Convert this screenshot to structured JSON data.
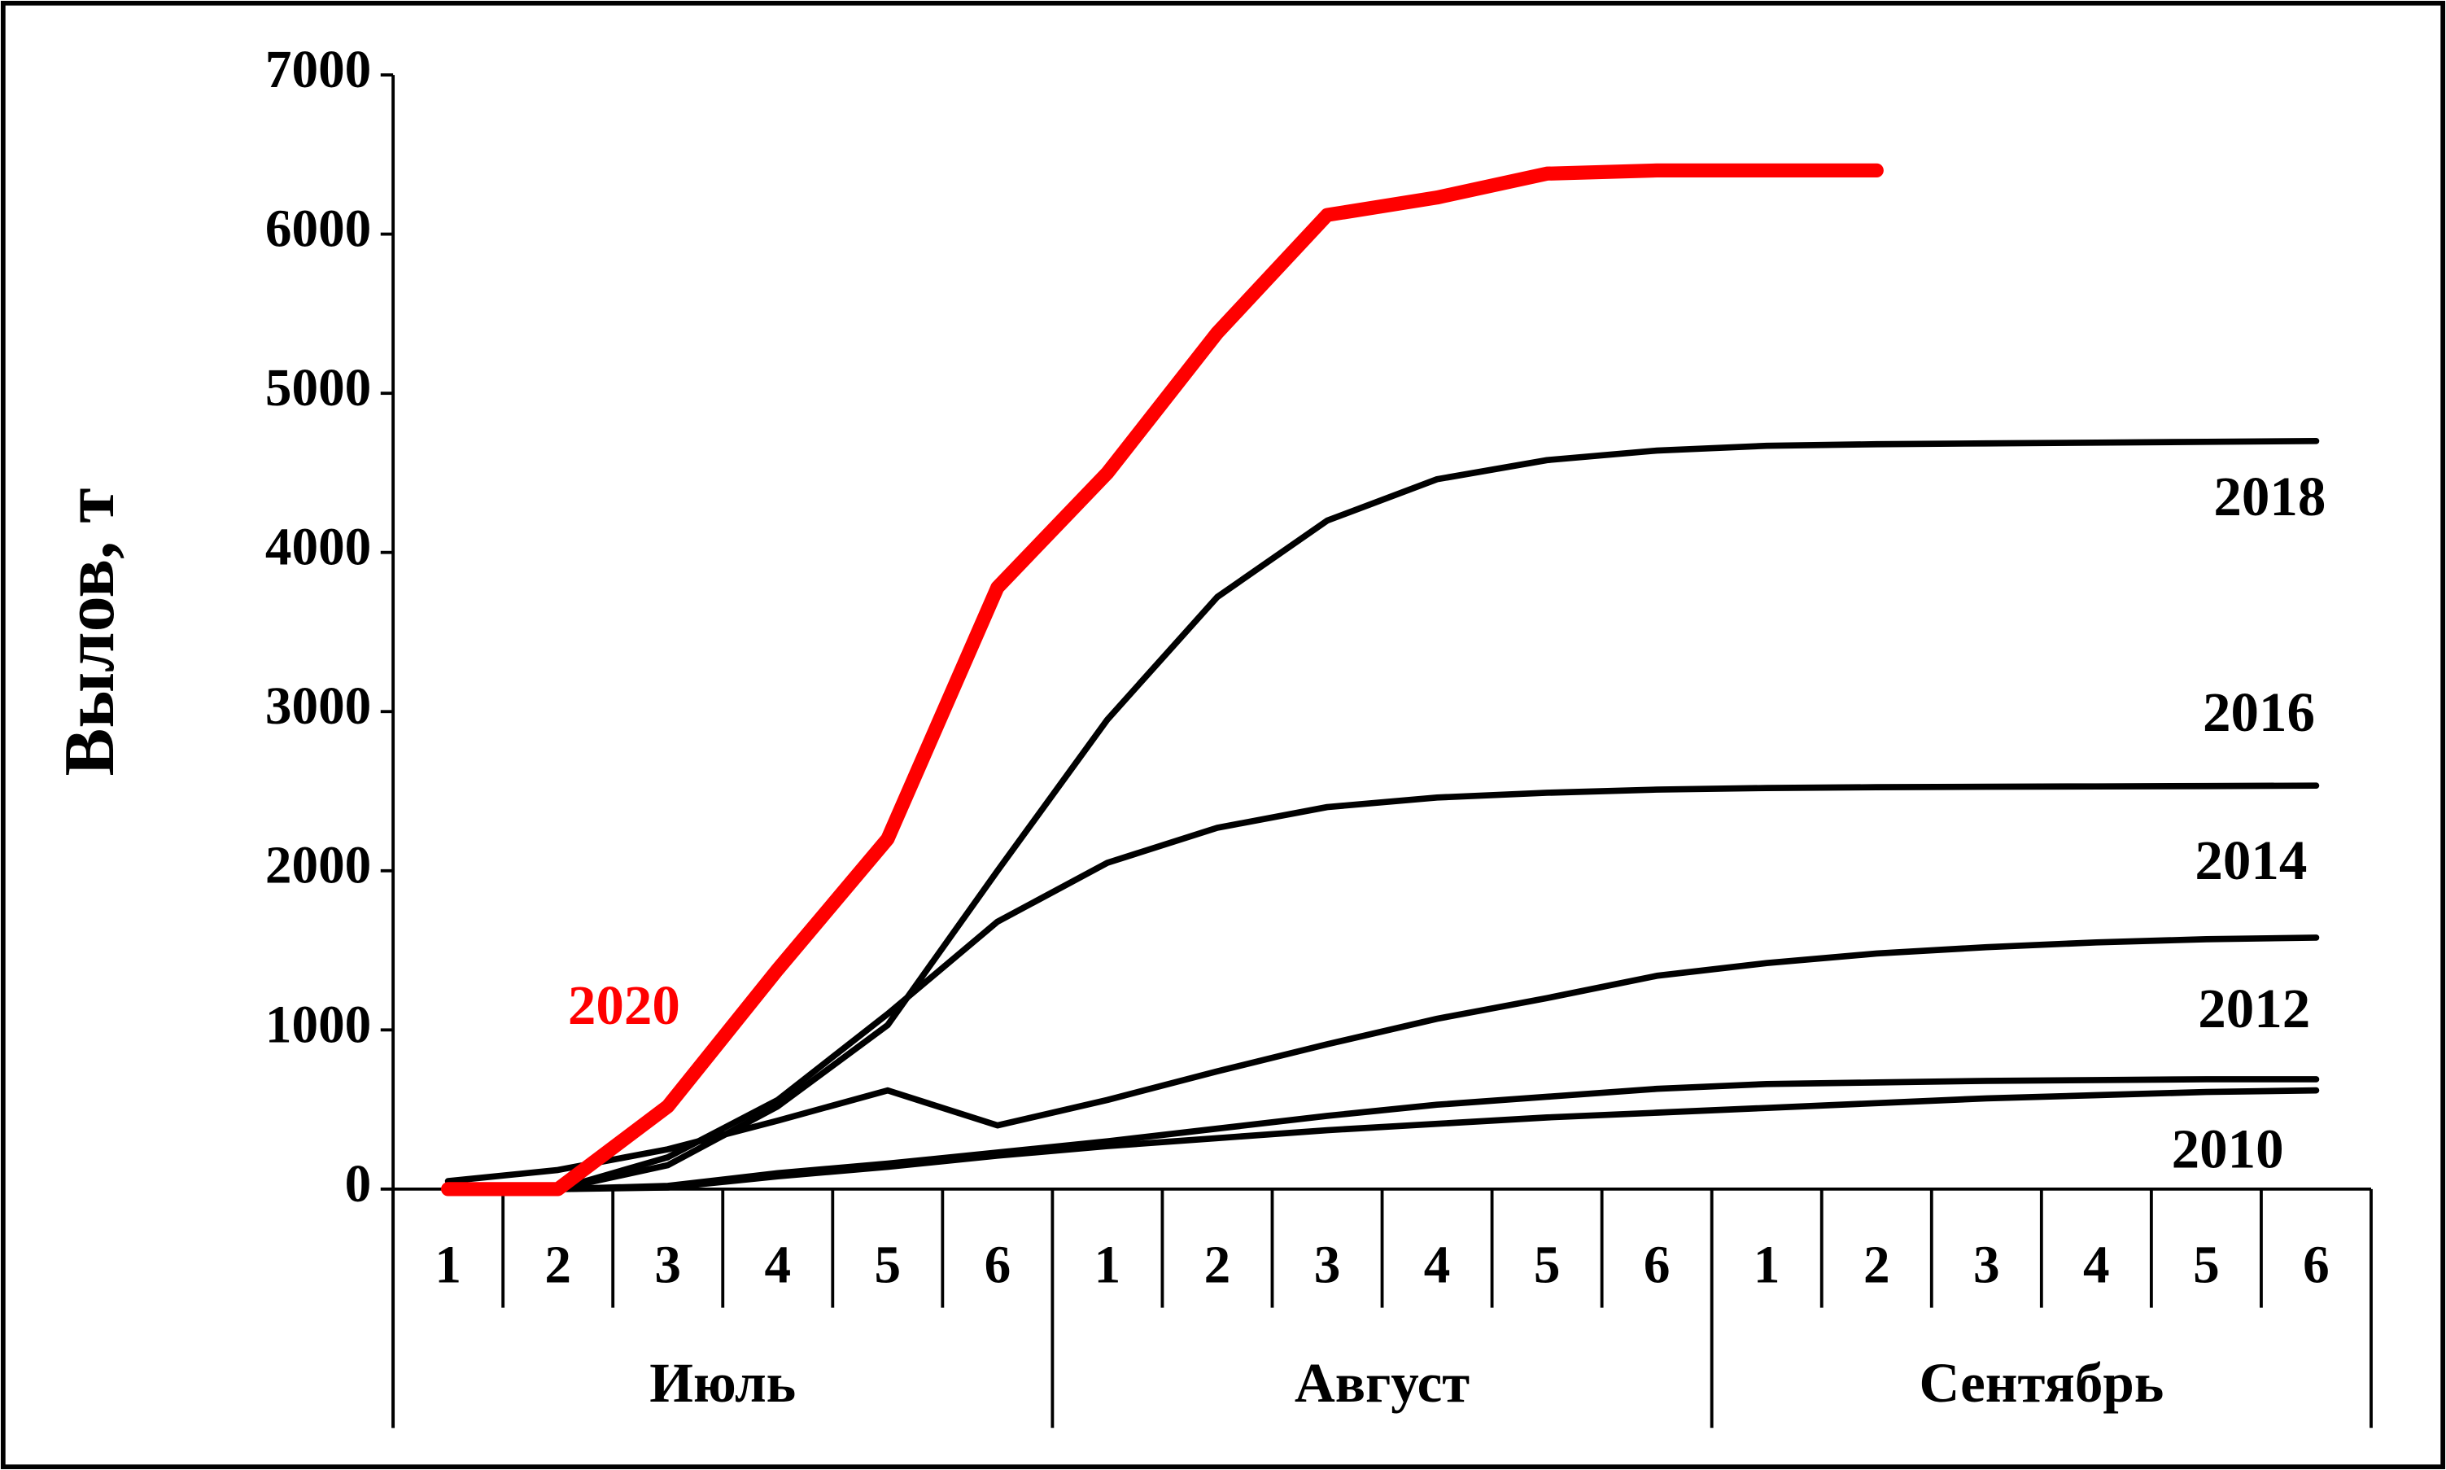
{
  "chart_data": {
    "type": "line",
    "y_label": "Вылов, т",
    "categories": [
      "1",
      "2",
      "3",
      "4",
      "5",
      "6",
      "1",
      "2",
      "3",
      "4",
      "5",
      "6",
      "1",
      "2",
      "3",
      "4",
      "5",
      "6"
    ],
    "month_labels": [
      "Июль",
      "Август",
      "Сентябрь"
    ],
    "ylim": [
      0,
      7000
    ],
    "yticks": [
      0,
      1000,
      2000,
      3000,
      4000,
      5000,
      6000,
      7000
    ],
    "series": [
      {
        "name": "2020",
        "color": "#ff0000",
        "values": [
          0,
          0,
          520,
          1380,
          2200,
          3780,
          4500,
          5380,
          6120,
          6230,
          6380,
          6400,
          6400,
          6400,
          null,
          null,
          null,
          null
        ]
      },
      {
        "name": "2018",
        "color": "#000000",
        "values": [
          0,
          0,
          150,
          520,
          1030,
          2000,
          2950,
          3720,
          4200,
          4460,
          4580,
          4640,
          4670,
          4680,
          4685,
          4690,
          4695,
          4700
        ]
      },
      {
        "name": "2016",
        "color": "#000000",
        "values": [
          0,
          0,
          200,
          560,
          1100,
          1680,
          2050,
          2270,
          2400,
          2460,
          2490,
          2510,
          2520,
          2525,
          2528,
          2530,
          2532,
          2535
        ]
      },
      {
        "name": "2014",
        "color": "#000000",
        "values": [
          50,
          120,
          250,
          430,
          620,
          400,
          560,
          740,
          910,
          1070,
          1200,
          1340,
          1420,
          1480,
          1520,
          1550,
          1570,
          1580
        ]
      },
      {
        "name": "2012",
        "color": "#000000",
        "values": [
          0,
          0,
          20,
          100,
          160,
          230,
          300,
          380,
          460,
          530,
          580,
          630,
          660,
          670,
          680,
          685,
          690,
          690
        ]
      },
      {
        "name": "2010",
        "color": "#000000",
        "values": [
          0,
          0,
          10,
          80,
          140,
          210,
          270,
          320,
          370,
          410,
          450,
          480,
          510,
          540,
          570,
          590,
          610,
          620
        ]
      }
    ]
  }
}
